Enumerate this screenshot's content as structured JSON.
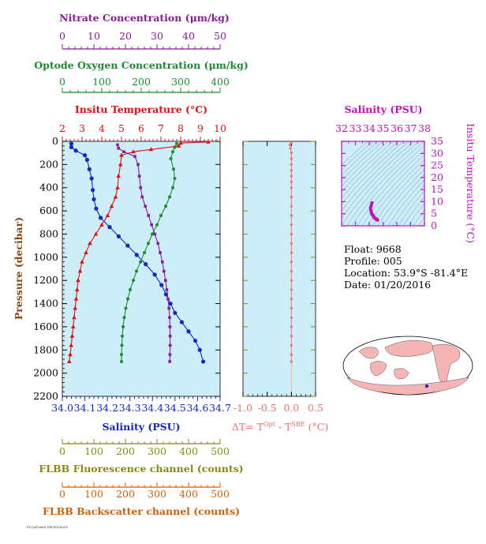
{
  "float_info": {
    "float": "Float:  9668",
    "profile": "Profile:  005",
    "location": "Location:  53.9°S  -81.4°E",
    "date": "Date:  01/20/2016"
  },
  "footer_text": "FLOAT9668 PROFILE005",
  "colors": {
    "nitrate": "#8b1a9b",
    "oxygen": "#1a8c2e",
    "temperature": "#e01010",
    "salinity": "#1028c8",
    "delta_t": "#f07070",
    "fluorescence": "#8a8a10",
    "backscatter": "#d0600a",
    "theta_s": "#c010c0",
    "panel_bg": "#cdeef8"
  },
  "chart_data": [
    {
      "type": "line",
      "name": "main_profiles",
      "y_label": "Pressure (decibar)",
      "ylim": [
        2200,
        0
      ],
      "y_ticks": [
        0,
        200,
        400,
        600,
        800,
        1000,
        1200,
        1400,
        1600,
        1800,
        2000,
        2200
      ],
      "axes": {
        "nitrate": {
          "label": "Nitrate Concentration (μm/kg)",
          "range": [
            0,
            50
          ],
          "ticks": [
            0,
            10,
            20,
            30,
            40,
            50
          ]
        },
        "oxygen": {
          "label": "Optode Oxygen Concentration (μm/kg)",
          "range": [
            0,
            400
          ],
          "ticks": [
            0,
            100,
            200,
            300,
            400
          ]
        },
        "temperature": {
          "label": "Insitu Temperature (°C)",
          "range": [
            2,
            10
          ],
          "ticks": [
            2,
            3,
            4,
            5,
            6,
            7,
            8,
            9,
            10
          ]
        },
        "salinity": {
          "label": "Salinity (PSU)",
          "range": [
            34.0,
            34.7
          ],
          "ticks": [
            "34.0",
            "34.1",
            "34.2",
            "34.3",
            "34.4",
            "34.5",
            "34.6",
            "34.7"
          ]
        },
        "fluorescence": {
          "label": "FLBB Fluorescence channel (counts)",
          "range": [
            0,
            500
          ],
          "ticks": [
            0,
            100,
            200,
            300,
            400,
            500
          ]
        },
        "backscatter": {
          "label": "FLBB Backscatter channel (counts)",
          "range": [
            0,
            500
          ],
          "ticks": [
            0,
            100,
            200,
            300,
            400,
            500
          ]
        }
      },
      "series": [
        {
          "key": "temperature",
          "marker": "triangle",
          "points": [
            [
              9.4,
              5
            ],
            [
              8.0,
              15
            ],
            [
              7.9,
              40
            ],
            [
              6.5,
              70
            ],
            [
              5.6,
              90
            ],
            [
              5.0,
              120
            ],
            [
              4.95,
              200
            ],
            [
              4.85,
              300
            ],
            [
              4.8,
              400
            ],
            [
              4.7,
              480
            ],
            [
              4.5,
              560
            ],
            [
              4.3,
              640
            ],
            [
              4.0,
              720
            ],
            [
              3.7,
              800
            ],
            [
              3.4,
              880
            ],
            [
              3.2,
              960
            ],
            [
              3.0,
              1040
            ],
            [
              2.9,
              1120
            ],
            [
              2.8,
              1200
            ],
            [
              2.75,
              1280
            ],
            [
              2.7,
              1360
            ],
            [
              2.65,
              1440
            ],
            [
              2.6,
              1520
            ],
            [
              2.55,
              1600
            ],
            [
              2.5,
              1680
            ],
            [
              2.45,
              1760
            ],
            [
              2.4,
              1840
            ],
            [
              2.35,
              1900
            ]
          ]
        },
        {
          "key": "salinity",
          "marker": "circle",
          "points": [
            [
              34.04,
              20
            ],
            [
              34.04,
              50
            ],
            [
              34.06,
              80
            ],
            [
              34.1,
              120
            ],
            [
              34.11,
              160
            ],
            [
              34.12,
              240
            ],
            [
              34.13,
              320
            ],
            [
              34.135,
              420
            ],
            [
              34.14,
              500
            ],
            [
              34.15,
              580
            ],
            [
              34.17,
              660
            ],
            [
              34.21,
              740
            ],
            [
              34.25,
              820
            ],
            [
              34.29,
              900
            ],
            [
              34.33,
              980
            ],
            [
              34.37,
              1060
            ],
            [
              34.41,
              1150
            ],
            [
              34.44,
              1240
            ],
            [
              34.46,
              1320
            ],
            [
              34.48,
              1400
            ],
            [
              34.5,
              1480
            ],
            [
              34.53,
              1560
            ],
            [
              34.56,
              1640
            ],
            [
              34.59,
              1720
            ],
            [
              34.61,
              1800
            ],
            [
              34.625,
              1900
            ]
          ]
        },
        {
          "key": "nitrate",
          "marker": "square",
          "points": [
            [
              17.5,
              30
            ],
            [
              17.8,
              60
            ],
            [
              19.5,
              90
            ],
            [
              23.0,
              130
            ],
            [
              24.0,
              200
            ],
            [
              24.4,
              300
            ],
            [
              24.8,
              400
            ],
            [
              25.3,
              480
            ],
            [
              26.3,
              560
            ],
            [
              27.3,
              640
            ],
            [
              28.3,
              720
            ],
            [
              29.3,
              800
            ],
            [
              30.3,
              880
            ],
            [
              31.0,
              960
            ],
            [
              31.7,
              1040
            ],
            [
              32.2,
              1120
            ],
            [
              32.7,
              1200
            ],
            [
              33.1,
              1280
            ],
            [
              33.5,
              1360
            ],
            [
              33.8,
              1440
            ],
            [
              34.0,
              1520
            ],
            [
              34.1,
              1600
            ],
            [
              34.15,
              1680
            ],
            [
              34.15,
              1760
            ],
            [
              34.1,
              1840
            ],
            [
              34.05,
              1900
            ]
          ]
        },
        {
          "key": "oxygen",
          "marker": "circle",
          "points": [
            [
              290,
              20
            ],
            [
              285,
              50
            ],
            [
              280,
              90
            ],
            [
              275,
              150
            ],
            [
              282,
              240
            ],
            [
              285,
              320
            ],
            [
              280,
              400
            ],
            [
              272,
              480
            ],
            [
              262,
              560
            ],
            [
              250,
              640
            ],
            [
              240,
              720
            ],
            [
              228,
              800
            ],
            [
              218,
              880
            ],
            [
              208,
              960
            ],
            [
              198,
              1040
            ],
            [
              188,
              1120
            ],
            [
              180,
              1200
            ],
            [
              172,
              1280
            ],
            [
              166,
              1360
            ],
            [
              161,
              1440
            ],
            [
              157,
              1520
            ],
            [
              154,
              1600
            ],
            [
              152,
              1680
            ],
            [
              151,
              1760
            ],
            [
              150,
              1840
            ],
            [
              150,
              1900
            ]
          ]
        }
      ]
    },
    {
      "type": "scatter",
      "name": "delta_t",
      "x_label": "ΔT= T^Opt - T^SBE (°C)",
      "xlim": [
        -1.0,
        0.5
      ],
      "x_ticks": [
        "-1.0",
        "-0.5",
        "0.0",
        "0.5"
      ],
      "ylim": [
        2200,
        0
      ],
      "points": [
        [
          0.0,
          10
        ],
        [
          -0.03,
          30
        ],
        [
          -0.02,
          60
        ],
        [
          0.0,
          100
        ],
        [
          0.0,
          150
        ],
        [
          0.0,
          200
        ],
        [
          0.0,
          250
        ],
        [
          0.0,
          300
        ],
        [
          0.0,
          350
        ],
        [
          0.0,
          400
        ],
        [
          0.0,
          480
        ],
        [
          0.0,
          560
        ],
        [
          0.0,
          640
        ],
        [
          0.0,
          720
        ],
        [
          0.0,
          800
        ],
        [
          0.0,
          880
        ],
        [
          0.0,
          960
        ],
        [
          0.0,
          1040
        ],
        [
          0.0,
          1120
        ],
        [
          0.0,
          1200
        ],
        [
          0.0,
          1280
        ],
        [
          0.0,
          1360
        ],
        [
          0.0,
          1440
        ],
        [
          0.0,
          1520
        ],
        [
          0.0,
          1600
        ],
        [
          0.0,
          1680
        ],
        [
          0.0,
          1760
        ],
        [
          0.0,
          1840
        ],
        [
          0.0,
          1900
        ]
      ]
    },
    {
      "type": "scatter",
      "name": "theta_s",
      "x_label": "Salinity (PSU)",
      "y_label": "Insitu Temperature (°C)",
      "xlim": [
        32,
        38
      ],
      "ylim": [
        0,
        35
      ],
      "x_ticks": [
        32,
        33,
        34,
        35,
        36,
        37,
        38
      ],
      "y_ticks": [
        0,
        5,
        10,
        15,
        20,
        25,
        30,
        35
      ],
      "points": [
        [
          34.2,
          9.5
        ],
        [
          34.15,
          8.5
        ],
        [
          34.1,
          7.5
        ],
        [
          34.12,
          6.5
        ],
        [
          34.15,
          5.5
        ],
        [
          34.2,
          4.8
        ],
        [
          34.25,
          4.5
        ],
        [
          34.3,
          4.0
        ],
        [
          34.35,
          3.5
        ],
        [
          34.4,
          3.2
        ],
        [
          34.45,
          3.0
        ],
        [
          34.5,
          2.8
        ],
        [
          34.55,
          2.6
        ],
        [
          34.6,
          2.45
        ]
      ]
    }
  ]
}
